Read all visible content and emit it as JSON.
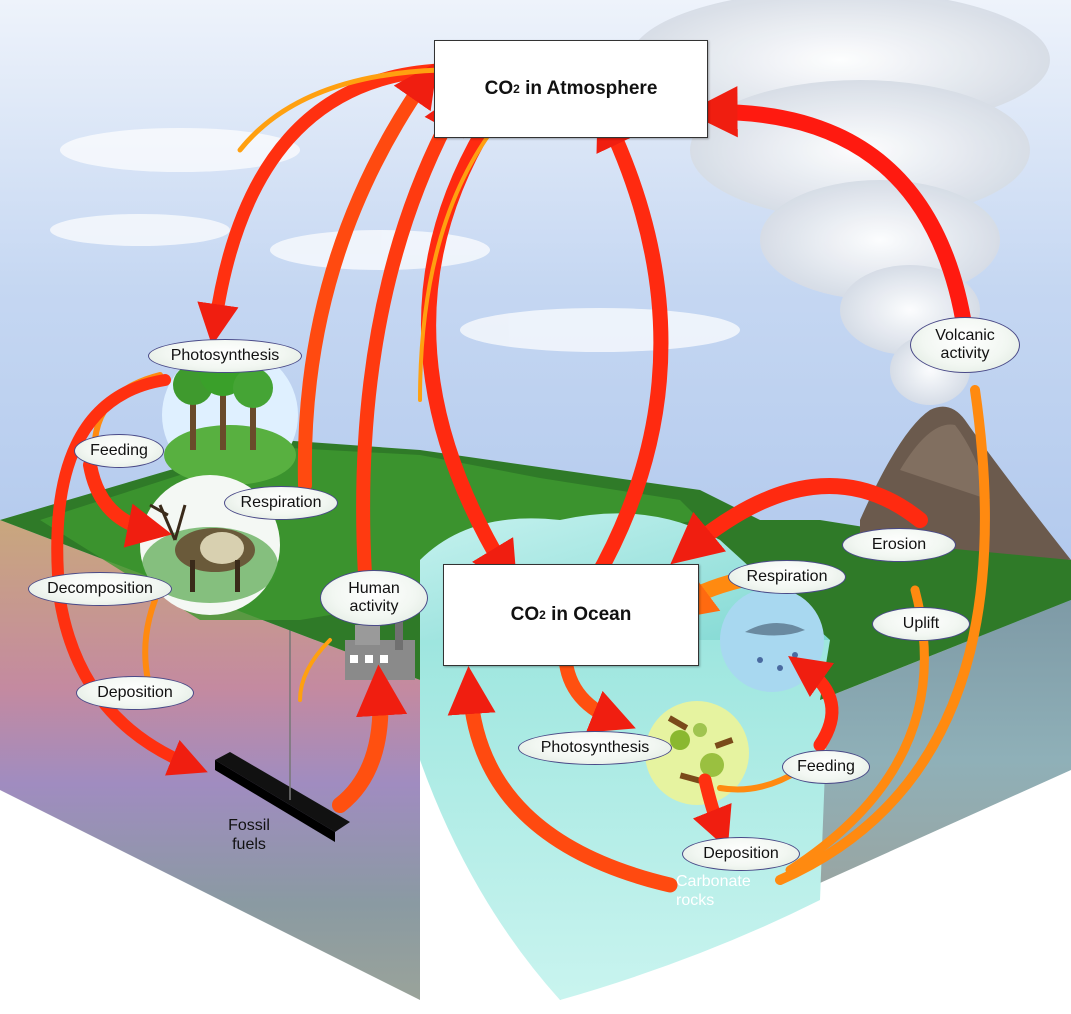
{
  "nodes": {
    "atmosphere": {
      "prefix": "CO",
      "sub": "2",
      "suffix": " in Atmosphere"
    },
    "ocean": {
      "prefix": "CO",
      "sub": "2",
      "suffix": " in Ocean"
    }
  },
  "labels": {
    "photosynthesis_land": "Photosynthesis",
    "feeding_land": "Feeding",
    "respiration_land": "Respiration",
    "decomposition": "Decomposition",
    "deposition_land": "Deposition",
    "human_activity_line1": "Human",
    "human_activity_line2": "activity",
    "volcanic_line1": "Volcanic",
    "volcanic_line2": "activity",
    "erosion": "Erosion",
    "uplift": "Uplift",
    "respiration_ocean": "Respiration",
    "photosynthesis_ocean": "Photosynthesis",
    "feeding_ocean": "Feeding",
    "deposition_ocean": "Deposition"
  },
  "plain_text": {
    "fossil_line1": "Fossil",
    "fossil_line2": "fuels",
    "carbonate_line1": "Carbonate",
    "carbonate_line2": "rocks"
  },
  "colors": {
    "arrow_red": "#f02010",
    "arrow_orange": "#ff9a10",
    "sky": "#b9cff0",
    "ocean": "#8fe0dc",
    "land": "#2f7a28"
  }
}
